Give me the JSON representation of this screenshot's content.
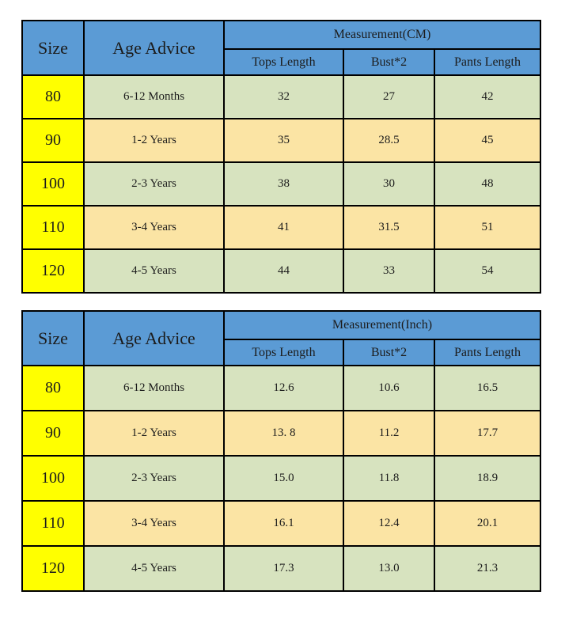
{
  "colors": {
    "header_blue": "#5B9BD5",
    "size_yellow": "#FFFF00",
    "row_green": "#D7E3BF",
    "row_tan": "#FBE4A4",
    "border": "#000000",
    "text": "#1C1C1C"
  },
  "tables": [
    {
      "size_header": "Size",
      "age_header": "Age Advice",
      "measurement_header": "Measurement(CM)",
      "columns": [
        "Tops Length",
        "Bust*2",
        "Pants Length"
      ],
      "rows": [
        {
          "size": "80",
          "age": "6-12 Months",
          "values": [
            "32",
            "27",
            "42"
          ]
        },
        {
          "size": "90",
          "age": "1-2 Years",
          "values": [
            "35",
            "28.5",
            "45"
          ]
        },
        {
          "size": "100",
          "age": "2-3 Years",
          "values": [
            "38",
            "30",
            "48"
          ]
        },
        {
          "size": "110",
          "age": "3-4 Years",
          "values": [
            "41",
            "31.5",
            "51"
          ]
        },
        {
          "size": "120",
          "age": "4-5 Years",
          "values": [
            "44",
            "33",
            "54"
          ]
        }
      ]
    },
    {
      "size_header": "Size",
      "age_header": "Age Advice",
      "measurement_header": "Measurement(Inch)",
      "columns": [
        "Tops Length",
        "Bust*2",
        "Pants Length"
      ],
      "rows": [
        {
          "size": "80",
          "age": "6-12 Months",
          "values": [
            "12.6",
            "10.6",
            "16.5"
          ]
        },
        {
          "size": "90",
          "age": "1-2 Years",
          "values": [
            "13. 8",
            "11.2",
            "17.7"
          ]
        },
        {
          "size": "100",
          "age": "2-3 Years",
          "values": [
            "15.0",
            "11.8",
            "18.9"
          ]
        },
        {
          "size": "110",
          "age": "3-4 Years",
          "values": [
            "16.1",
            "12.4",
            "20.1"
          ]
        },
        {
          "size": "120",
          "age": "4-5 Years",
          "values": [
            "17.3",
            "13.0",
            "21.3"
          ]
        }
      ]
    }
  ]
}
